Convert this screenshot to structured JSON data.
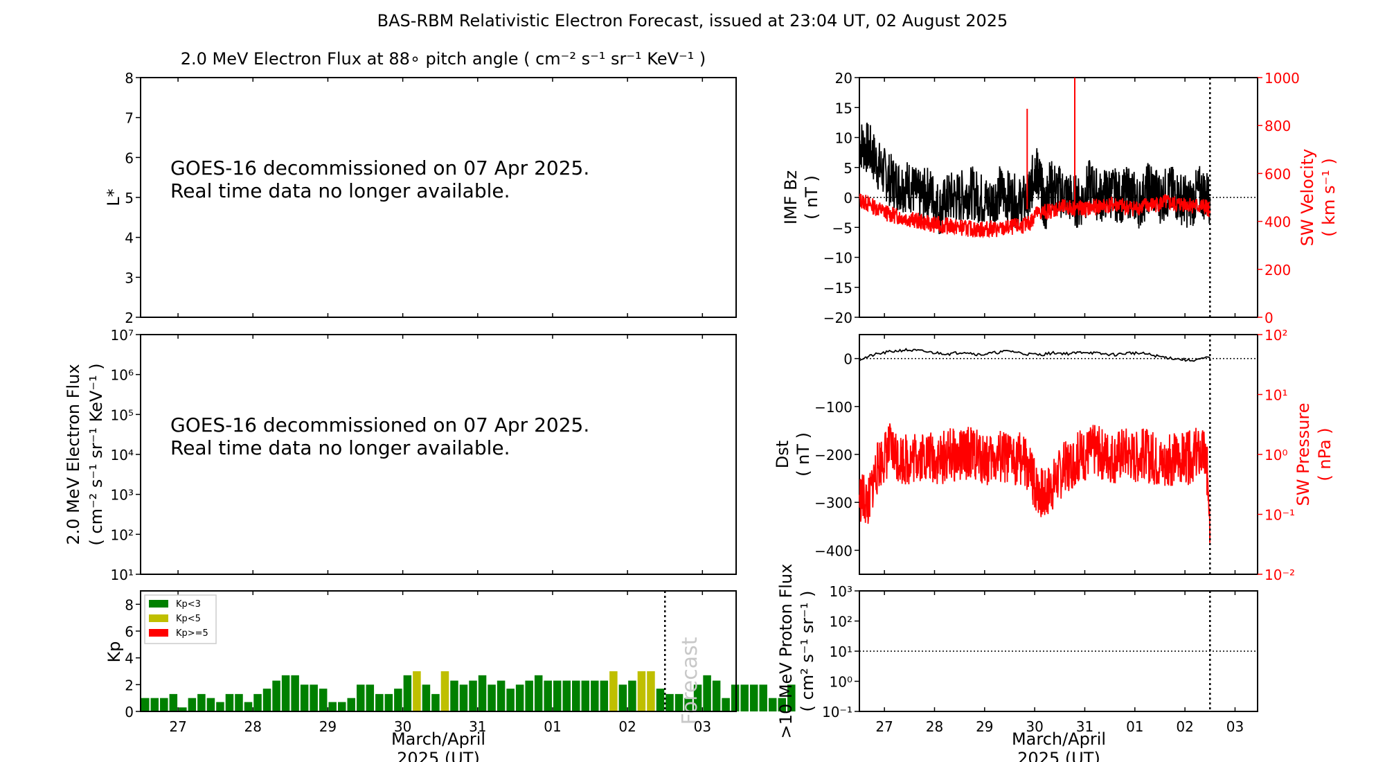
{
  "figure": {
    "title": "BAS-RBM Relativistic Electron Forecast, issued at 23:04 UT, 02 August 2025",
    "colors": {
      "black": "#000000",
      "red": "#ff0000",
      "green": "#008000",
      "olive": "#bfbf00",
      "forecast_text": "#c8c8c8"
    }
  },
  "chart_data": [
    {
      "id": "lstar",
      "type": "line",
      "title": "2.0 MeV Electron Flux at 88∘ pitch angle ( cm⁻² s⁻¹ sr⁻¹ KeV⁻¹ )",
      "ylabel": "L*",
      "ylim": [
        2,
        8
      ],
      "yticks": [
        "2",
        "3",
        "4",
        "5",
        "6",
        "7",
        "8"
      ],
      "xlim": [
        26.5,
        34.45
      ],
      "message_line1": "GOES-16 decommissioned on 07 Apr 2025.",
      "message_line2": "Real time data no longer available.",
      "series": []
    },
    {
      "id": "eflux",
      "type": "line",
      "ylabel_line1": "2.0 MeV Electron Flux",
      "ylabel_line2": "( cm⁻² s⁻¹ sr⁻¹ KeV⁻¹ )",
      "yscale": "log",
      "ylim": [
        10,
        10000000
      ],
      "yticks": [
        "10¹",
        "10²",
        "10³",
        "10⁴",
        "10⁵",
        "10⁶",
        "10⁷"
      ],
      "message_line1": "GOES-16 decommissioned on 07 Apr 2025.",
      "message_line2": "Real time data no longer available.",
      "series": []
    },
    {
      "id": "kp",
      "type": "bar",
      "ylabel": "Kp",
      "ylim": [
        0,
        9
      ],
      "yticks": [
        "0",
        "2",
        "4",
        "6",
        "8"
      ],
      "xlabel_line1": "March/April",
      "xlabel_line2": "2025 (UT)",
      "xticks": [
        "27",
        "28",
        "29",
        "30",
        "31",
        "01",
        "02",
        "03"
      ],
      "xtick_positions": [
        27,
        28,
        29,
        30,
        31,
        32,
        33,
        34
      ],
      "bar_start_day": 26.5,
      "bar_width_days": 0.125,
      "forecast_start_day": 33.5,
      "forecast_label": "Forecast",
      "legend": [
        {
          "label": "Kp<3",
          "color": "#008000"
        },
        {
          "label": "Kp<5",
          "color": "#bfbf00"
        },
        {
          "label": "Kp>=5",
          "color": "#ff0000"
        }
      ],
      "values": [
        1.0,
        1.0,
        1.0,
        1.3,
        0.3,
        1.0,
        1.3,
        1.0,
        0.7,
        1.3,
        1.3,
        0.7,
        1.3,
        1.7,
        2.3,
        2.7,
        2.7,
        2.0,
        2.0,
        1.7,
        0.7,
        0.7,
        1.0,
        2.0,
        2.0,
        1.3,
        1.3,
        1.7,
        2.7,
        3.0,
        2.0,
        1.3,
        3.0,
        2.3,
        2.0,
        2.3,
        2.7,
        2.0,
        2.3,
        1.7,
        2.0,
        2.3,
        2.7,
        2.3,
        2.3,
        2.3,
        2.3,
        2.3,
        2.3,
        2.3,
        3.0,
        2.0,
        2.3,
        3.0,
        3.0,
        1.7,
        1.3,
        1.3,
        1.0,
        2.0,
        2.7,
        2.3,
        1.0,
        2.0,
        2.0,
        2.0,
        2.0,
        1.0,
        1.0,
        2.0
      ]
    },
    {
      "id": "imf",
      "type": "line",
      "ylabel_line1": "IMF Bz",
      "ylabel_line2": "( nT )",
      "ylim": [
        -20,
        20
      ],
      "yticks": [
        "−20",
        "−15",
        "−10",
        "−5",
        "0",
        "5",
        "10",
        "15",
        "20"
      ],
      "y2label_line1": "SW Velocity",
      "y2label_line2": "( km s⁻¹ )",
      "y2lim": [
        0,
        1000
      ],
      "y2ticks": [
        "0",
        "200",
        "400",
        "600",
        "800",
        "1000"
      ],
      "xlim": [
        26.5,
        34.45
      ],
      "now_day": 33.5,
      "series": [
        {
          "name": "IMF Bz",
          "color": "#000000",
          "x": [
            26.5,
            26.7,
            26.9,
            27.1,
            27.3,
            27.5,
            27.7,
            27.9,
            28.1,
            28.3,
            28.5,
            28.7,
            28.9,
            29.1,
            29.3,
            29.5,
            29.7,
            29.9,
            30.0,
            30.1,
            30.2,
            30.3,
            30.5,
            30.7,
            30.9,
            31.1,
            31.3,
            31.5,
            31.7,
            31.9,
            32.1,
            32.3,
            32.5,
            32.7,
            32.9,
            33.1,
            33.3,
            33.5
          ],
          "values": [
            9,
            8,
            5,
            3,
            2,
            2,
            0,
            1,
            -2,
            0,
            0,
            1,
            0,
            -1,
            1,
            0,
            -1,
            0,
            5,
            3,
            -2,
            2,
            1,
            0,
            -1,
            2,
            0,
            1,
            0,
            1,
            -1,
            2,
            0,
            1,
            0,
            -1,
            1,
            0
          ]
        },
        {
          "name": "SW Velocity",
          "color": "#ff0000",
          "axis": "right",
          "x": [
            26.5,
            26.7,
            26.9,
            27.1,
            27.3,
            27.5,
            27.7,
            27.9,
            28.1,
            28.3,
            28.5,
            28.7,
            28.9,
            29.1,
            29.3,
            29.5,
            29.7,
            29.9,
            30.0,
            30.2,
            30.4,
            30.6,
            30.8,
            31.0,
            31.2,
            31.4,
            31.6,
            31.8,
            32.0,
            32.2,
            32.4,
            32.6,
            32.8,
            33.0,
            33.2,
            33.4,
            33.5
          ],
          "values": [
            490,
            470,
            450,
            430,
            420,
            410,
            400,
            390,
            385,
            380,
            375,
            370,
            365,
            370,
            365,
            375,
            380,
            390,
            430,
            440,
            450,
            460,
            455,
            450,
            460,
            465,
            470,
            460,
            455,
            465,
            470,
            480,
            470,
            475,
            465,
            460,
            450
          ]
        }
      ],
      "spikes": [
        {
          "name": "SW Velocity",
          "x": 29.85,
          "value": 870,
          "axis": "right"
        },
        {
          "name": "SW Velocity",
          "x": 30.8,
          "value": 1000,
          "axis": "right"
        }
      ]
    },
    {
      "id": "dst",
      "type": "line",
      "ylabel_line1": "Dst",
      "ylabel_line2": "( nT )",
      "ylim": [
        -450,
        50
      ],
      "yticks": [
        "−400",
        "−300",
        "−200",
        "−100",
        "0"
      ],
      "y2label_line1": "SW Pressure",
      "y2label_line2": "( nPa )",
      "y2scale": "log",
      "y2lim": [
        0.01,
        100
      ],
      "y2ticks": [
        "10⁻²",
        "10⁻¹",
        "10⁰",
        "10¹",
        "10²"
      ],
      "xlim": [
        26.5,
        34.45
      ],
      "now_day": 33.5,
      "series": [
        {
          "name": "Dst",
          "color": "#000000",
          "x": [
            26.5,
            26.8,
            27.1,
            27.4,
            27.7,
            28.0,
            28.3,
            28.6,
            28.9,
            29.2,
            29.5,
            29.8,
            30.1,
            30.4,
            30.7,
            31.0,
            31.3,
            31.6,
            31.9,
            32.2,
            32.5,
            32.8,
            33.1,
            33.5
          ],
          "values": [
            -2,
            8,
            14,
            18,
            16,
            12,
            10,
            14,
            8,
            12,
            16,
            10,
            8,
            12,
            10,
            14,
            10,
            8,
            12,
            10,
            4,
            0,
            -4,
            2
          ]
        },
        {
          "name": "SW Pressure",
          "color": "#ff0000",
          "axis": "right",
          "x": [
            26.5,
            26.7,
            26.9,
            27.1,
            27.3,
            27.5,
            27.7,
            27.9,
            28.1,
            28.3,
            28.5,
            28.7,
            28.9,
            29.1,
            29.3,
            29.5,
            29.7,
            29.9,
            30.0,
            30.2,
            30.4,
            30.6,
            30.8,
            31.0,
            31.2,
            31.4,
            31.6,
            31.8,
            32.0,
            32.2,
            32.4,
            32.6,
            32.8,
            33.0,
            33.2,
            33.4,
            33.5
          ],
          "values": [
            0.2,
            0.15,
            0.7,
            1.2,
            0.9,
            0.8,
            1.0,
            0.9,
            0.8,
            1.0,
            0.9,
            1.1,
            0.9,
            0.8,
            0.9,
            0.8,
            0.9,
            0.5,
            0.3,
            0.2,
            0.35,
            0.6,
            0.8,
            1.0,
            1.2,
            1.0,
            0.9,
            1.1,
            0.9,
            1.0,
            0.8,
            0.7,
            0.9,
            0.8,
            1.0,
            0.9,
            0.05
          ]
        }
      ]
    },
    {
      "id": "proton",
      "type": "line",
      "ylabel_line1": ">10 MeV Proton Flux",
      "ylabel_line2": "( cm² s⁻¹ sr⁻¹ )",
      "yscale": "log",
      "ylim": [
        0.1,
        1000
      ],
      "yticks": [
        "10⁻¹",
        "10⁰",
        "10¹",
        "10²",
        "10³"
      ],
      "threshold": 10,
      "xlim": [
        26.5,
        34.45
      ],
      "now_day": 33.5,
      "xticks": [
        "27",
        "28",
        "29",
        "30",
        "31",
        "01",
        "02",
        "03"
      ],
      "xtick_positions": [
        27,
        28,
        29,
        30,
        31,
        32,
        33,
        34
      ],
      "xlabel_line1": "March/April",
      "xlabel_line2": "2025 (UT)",
      "series": []
    }
  ]
}
